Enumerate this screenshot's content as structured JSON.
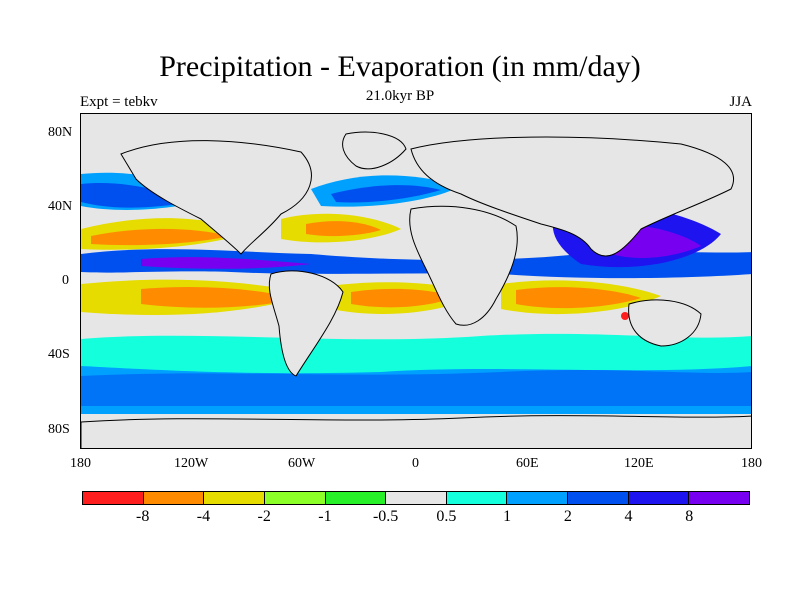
{
  "title": "Precipitation - Evaporation (in mm/day)",
  "subtitle": "21.0kyr BP",
  "left_label": "Expt = tebkv",
  "right_label": "JJA",
  "axes": {
    "y_ticks": [
      "80N",
      "40N",
      "0",
      "40S",
      "80S"
    ],
    "x_ticks": [
      "180",
      "120W",
      "60W",
      "0",
      "60E",
      "120E",
      "180"
    ]
  },
  "colorbar": {
    "colors": [
      "#ff1e1e",
      "#ff8c00",
      "#e6dc00",
      "#8cff28",
      "#28f028",
      "#e6e6e6",
      "#14ffdc",
      "#00a0ff",
      "#0050f0",
      "#1e14f0",
      "#7800f0"
    ],
    "labels": [
      "-8",
      "-4",
      "-2",
      "-1",
      "-0.5",
      "0.5",
      "1",
      "2",
      "4",
      "8"
    ]
  },
  "map_field": {
    "projection": "cylindrical equidistant",
    "lon_range": [
      -180,
      180
    ],
    "lat_range": [
      -90,
      90
    ],
    "background_color": "#e6e6e6",
    "coastline_color": "#000000"
  }
}
